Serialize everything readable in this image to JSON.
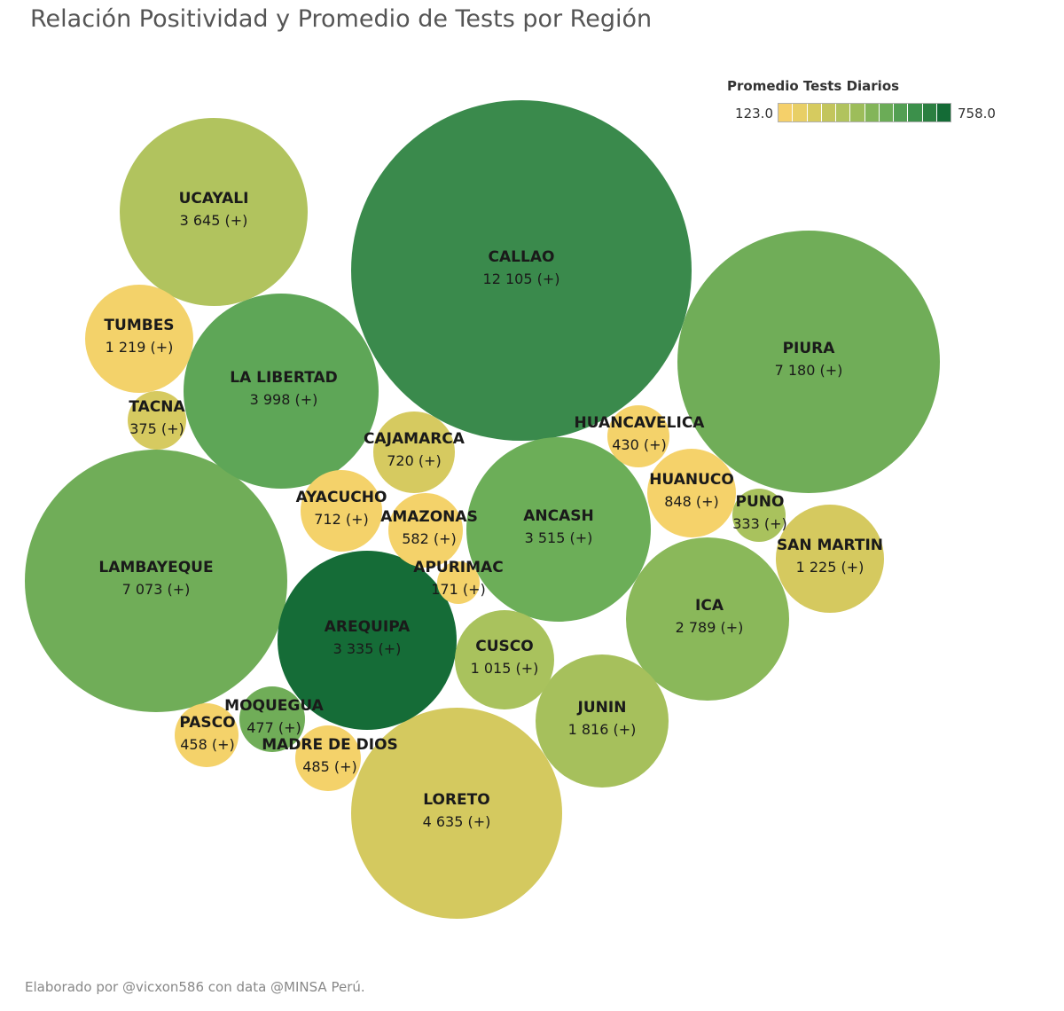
{
  "title": "Relación Positividad y Promedio de Tests por Región",
  "footer": "Elaborado por @vicxon586 con data @MINSA Perú.",
  "legend": {
    "title": "Promedio Tests Diarios",
    "min_label": "123.0",
    "max_label": "758.0",
    "colors": [
      "#f5d06a",
      "#e8cf66",
      "#d6cb5f",
      "#c3c55c",
      "#b1c35e",
      "#9dbd5a",
      "#83b559",
      "#6bac57",
      "#539f53",
      "#3c904b",
      "#2b7f41",
      "#146b36"
    ]
  },
  "chart_data": {
    "type": "bubble",
    "size_metric": "Positivos",
    "color_metric": "Promedio Tests Diarios",
    "color_range": [
      123.0,
      758.0
    ],
    "regions": [
      {
        "name": "CALLAO",
        "label": "12 105 (+)",
        "value": 12105,
        "color": "#3a8a4c"
      },
      {
        "name": "PIURA",
        "label": "7 180 (+)",
        "value": 7180,
        "color": "#70ad58"
      },
      {
        "name": "LAMBAYEQUE",
        "label": "7 073 (+)",
        "value": 7073,
        "color": "#70ad58"
      },
      {
        "name": "LORETO",
        "label": "4 635 (+)",
        "value": 4635,
        "color": "#d4c95f"
      },
      {
        "name": "LA LIBERTAD",
        "label": "3 998 (+)",
        "value": 3998,
        "color": "#5ea657"
      },
      {
        "name": "UCAYALI",
        "label": "3 645 (+)",
        "value": 3645,
        "color": "#b1c35e"
      },
      {
        "name": "ANCASH",
        "label": "3 515 (+)",
        "value": 3515,
        "color": "#6cae58"
      },
      {
        "name": "AREQUIPA",
        "label": "3 335 (+)",
        "value": 3335,
        "color": "#156c37"
      },
      {
        "name": "ICA",
        "label": "2 789 (+)",
        "value": 2789,
        "color": "#8ab85a"
      },
      {
        "name": "JUNIN",
        "label": "1 816 (+)",
        "value": 1816,
        "color": "#a6c05c"
      },
      {
        "name": "SAN MARTIN",
        "label": "1 225 (+)",
        "value": 1225,
        "color": "#d5c95f"
      },
      {
        "name": "TUMBES",
        "label": "1 219 (+)",
        "value": 1219,
        "color": "#f3d26a"
      },
      {
        "name": "CUSCO",
        "label": "1 015 (+)",
        "value": 1015,
        "color": "#a9c25d"
      },
      {
        "name": "HUANUCO",
        "label": "848 (+)",
        "value": 848,
        "color": "#f5d26a"
      },
      {
        "name": "CAJAMARCA",
        "label": "720 (+)",
        "value": 720,
        "color": "#d6ca60"
      },
      {
        "name": "AYACUCHO",
        "label": "712 (+)",
        "value": 712,
        "color": "#f4d26a"
      },
      {
        "name": "AMAZONAS",
        "label": "582 (+)",
        "value": 582,
        "color": "#f4d26a"
      },
      {
        "name": "MADRE DE DIOS",
        "label": "485 (+)",
        "value": 485,
        "color": "#f4d26a"
      },
      {
        "name": "MOQUEGUA",
        "label": "477 (+)",
        "value": 477,
        "color": "#70ad58"
      },
      {
        "name": "PASCO",
        "label": "458 (+)",
        "value": 458,
        "color": "#f4d26a"
      },
      {
        "name": "HUANCAVELICA",
        "label": "430 (+)",
        "value": 430,
        "color": "#f4d26a"
      },
      {
        "name": "TACNA",
        "label": "375 (+)",
        "value": 375,
        "color": "#d6ca60"
      },
      {
        "name": "PUNO",
        "label": "333 (+)",
        "value": 333,
        "color": "#a9c25d"
      },
      {
        "name": "APURIMAC",
        "label": "171 (+)",
        "value": 171,
        "color": "#f4d26a"
      }
    ]
  }
}
